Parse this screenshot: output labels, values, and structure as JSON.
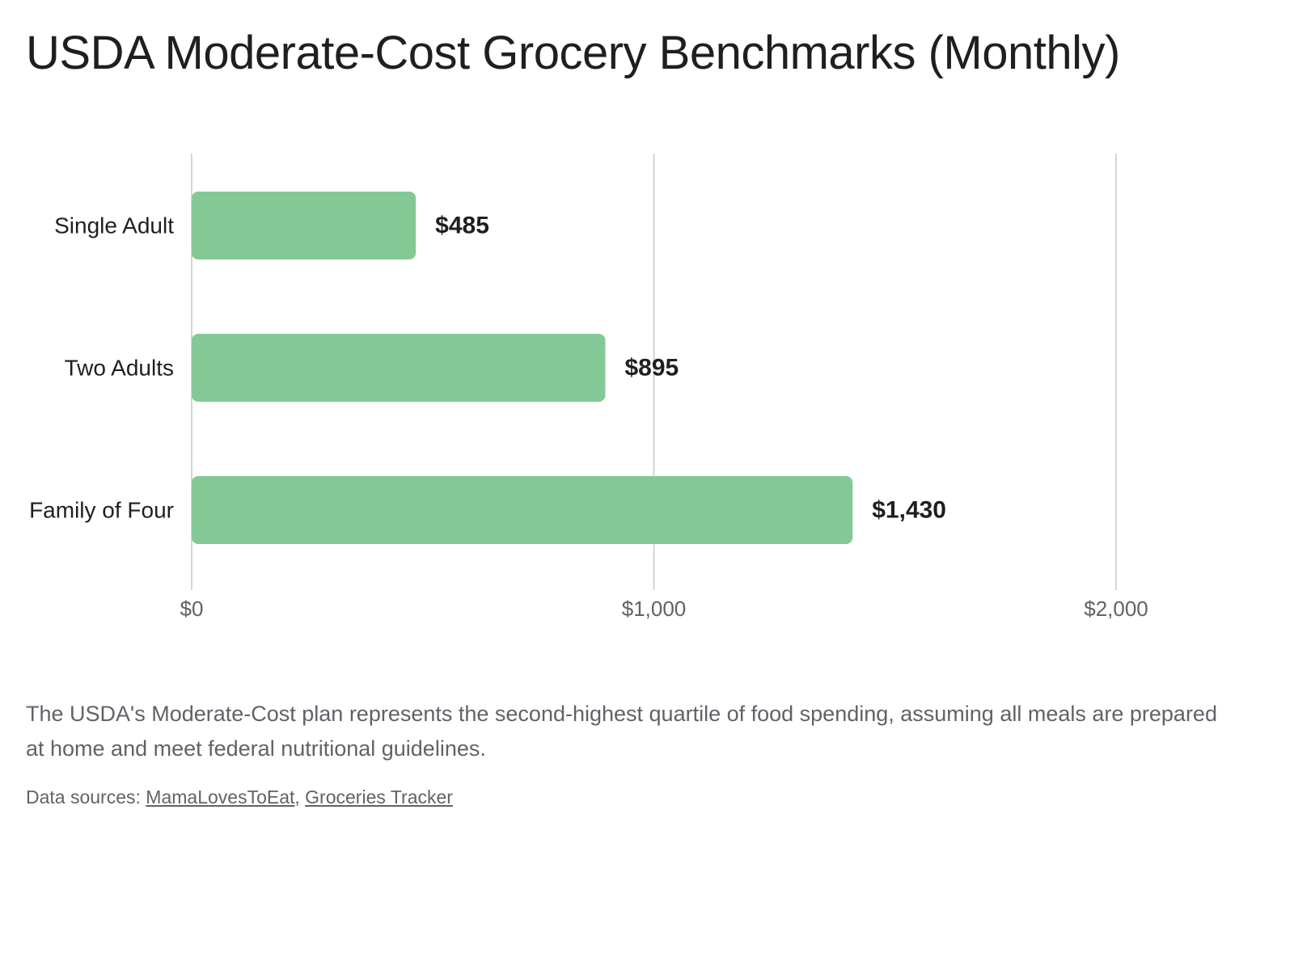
{
  "title": "USDA Moderate-Cost Grocery Benchmarks (Monthly)",
  "chart_data": {
    "type": "bar",
    "orientation": "horizontal",
    "categories": [
      "Single Adult",
      "Two Adults",
      "Family of Four"
    ],
    "values": [
      485,
      895,
      1430
    ],
    "value_labels": [
      "$485",
      "$895",
      "$1,430"
    ],
    "title": "USDA Moderate-Cost Grocery Benchmarks (Monthly)",
    "xlabel": "",
    "ylabel": "",
    "xlim": [
      0,
      2000
    ],
    "x_ticks": [
      0,
      1000,
      2000
    ],
    "x_tick_labels": [
      "$0",
      "$1,000",
      "$2,000"
    ],
    "grid": true,
    "legend": "none",
    "bar_color": "#84c995"
  },
  "caption": "The USDA's Moderate-Cost plan represents the second-highest quartile of food spending, assuming all meals are prepared at home and meet federal nutritional guidelines.",
  "sources": {
    "prefix": "Data sources: ",
    "separator": ", ",
    "links": [
      "MamaLovesToEat",
      "Groceries Tracker"
    ]
  }
}
